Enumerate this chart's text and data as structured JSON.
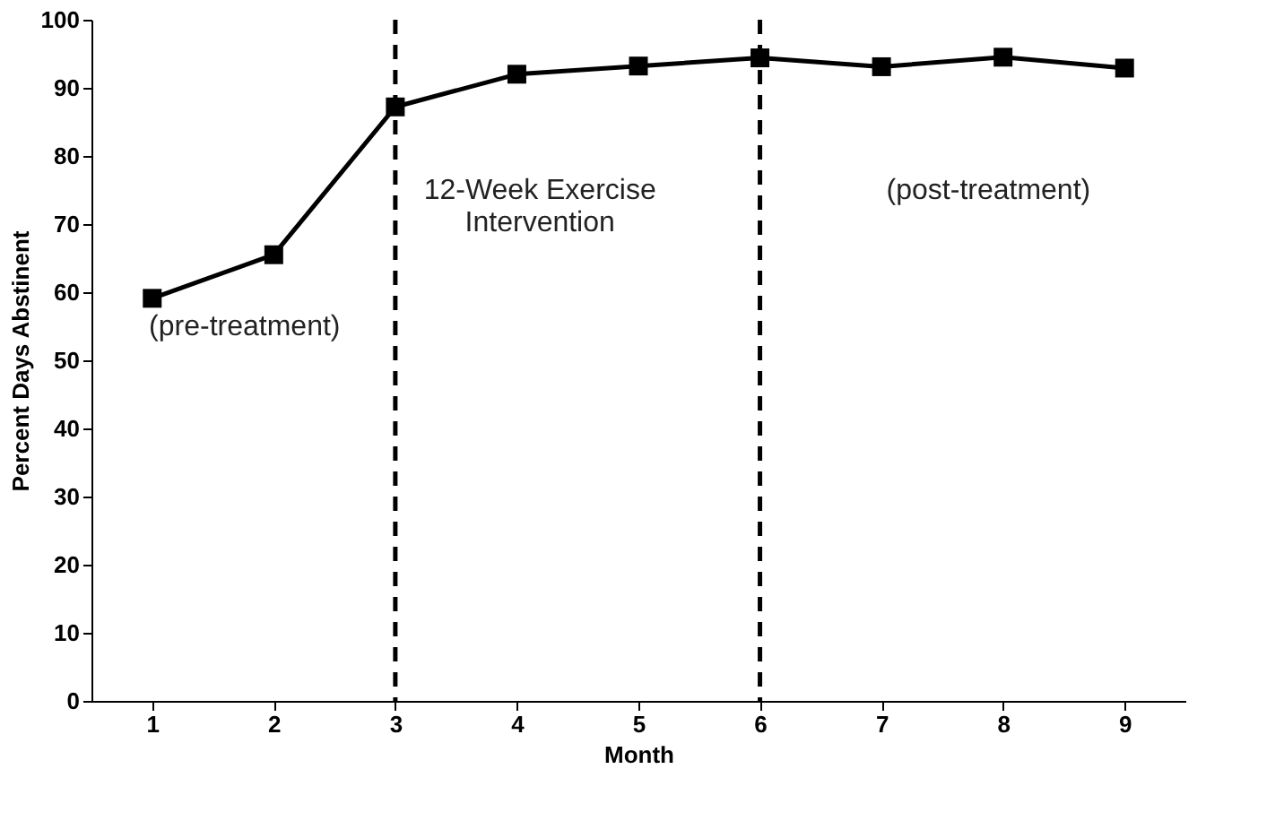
{
  "chart_data": {
    "type": "line",
    "xlabel": "Month",
    "ylabel": "Percent Days Abstinent",
    "x": [
      1,
      2,
      3,
      4,
      5,
      6,
      7,
      8,
      9
    ],
    "series": [
      {
        "color": "#000000",
        "values": [
          59.1,
          65.5,
          87.2,
          92.0,
          93.2,
          94.4,
          93.1,
          94.5,
          92.9
        ]
      }
    ],
    "xlim": [
      0.5,
      9.5
    ],
    "xticks": [
      1,
      2,
      3,
      4,
      5,
      6,
      7,
      8,
      9
    ],
    "ylim": [
      0,
      100
    ],
    "yticks": [
      0,
      10,
      20,
      30,
      40,
      50,
      60,
      70,
      80,
      90,
      100
    ],
    "ref_lines": [
      {
        "axis": "x",
        "value": 3,
        "color": "#000000",
        "line_style": "dashed"
      },
      {
        "axis": "x",
        "value": 6,
        "color": "#000000",
        "line_style": "dashed"
      }
    ],
    "annotations": [
      "(pre-treatment)",
      "12-Week Exercise\nIntervention",
      "(post-treatment)"
    ],
    "marker": "square",
    "line_style": "solid",
    "grid": false
  }
}
